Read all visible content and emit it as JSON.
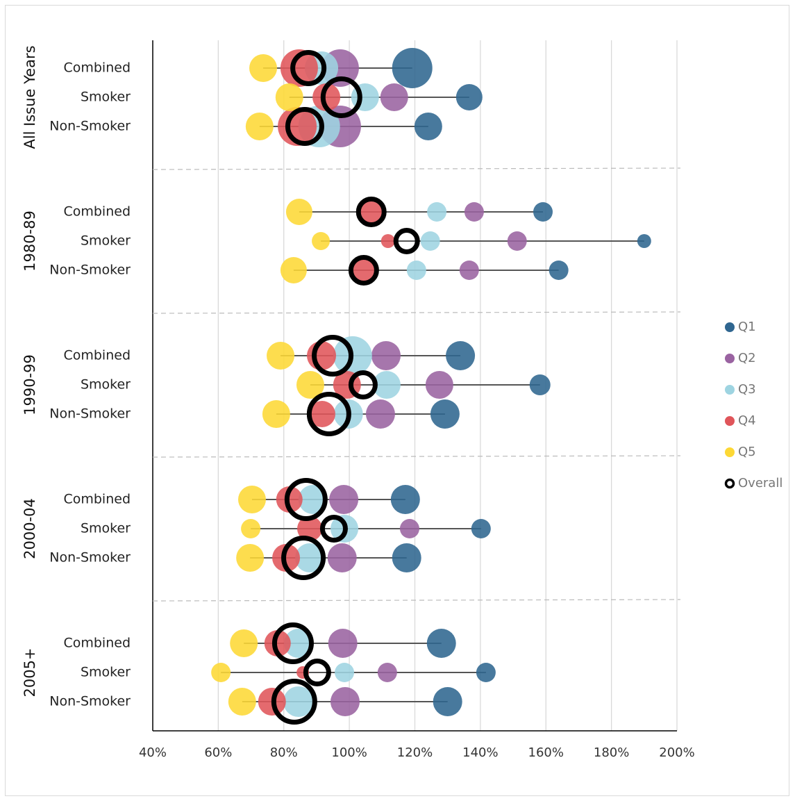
{
  "chart_data": {
    "type": "dot-bubble",
    "groups": [
      {
        "name": "All Issue Years",
        "rows": [
          "Combined",
          "Smoker",
          "Non-Smoker"
        ]
      },
      {
        "name": "1980-89",
        "rows": [
          "Combined",
          "Smoker",
          "Non-Smoker"
        ]
      },
      {
        "name": "1990-99",
        "rows": [
          "Combined",
          "Smoker",
          "Non-Smoker"
        ]
      },
      {
        "name": "2000-04",
        "rows": [
          "Combined",
          "Smoker",
          "Non-Smoker"
        ]
      },
      {
        "name": "2005+",
        "rows": [
          "Combined",
          "Smoker",
          "Non-Smoker"
        ]
      }
    ],
    "series": [
      {
        "name": "Q1",
        "color": "#2f6690",
        "values": [
          119.2,
          136.6,
          124.1,
          159.1,
          190.0,
          163.9,
          133.9,
          158.2,
          129.2,
          117.1,
          140.2,
          117.5,
          128.1,
          141.7,
          130.0
        ],
        "sizes": [
          29,
          19,
          20,
          14,
          10,
          14,
          21,
          15,
          21,
          21,
          14,
          21,
          21,
          14,
          21
        ]
      },
      {
        "name": "Q2",
        "color": "#9a63a1",
        "values": [
          97.2,
          113.7,
          97.2,
          138.1,
          151.2,
          136.6,
          111.2,
          127.5,
          109.5,
          98.3,
          118.4,
          97.8,
          98.0,
          111.6,
          98.7
        ],
        "sizes": [
          27,
          20,
          30,
          14,
          14,
          14,
          21,
          20,
          21,
          21,
          14,
          21,
          21,
          14,
          21
        ]
      },
      {
        "name": "Q3",
        "color": "#9ed4e1",
        "values": [
          91.5,
          104.8,
          90.8,
          126.7,
          124.7,
          120.5,
          101.0,
          111.4,
          99.7,
          88.9,
          98.5,
          87.9,
          84.5,
          98.5,
          84.5
        ],
        "sizes": [
          24,
          20,
          30,
          14,
          14,
          14,
          28,
          20,
          21,
          21,
          20,
          21,
          21,
          14,
          22
        ]
      },
      {
        "name": "Q4",
        "color": "#e0555a",
        "values": [
          84.7,
          93.0,
          84.1,
          106.7,
          111.8,
          104.4,
          91.5,
          99.3,
          91.7,
          81.7,
          87.9,
          80.7,
          78.1,
          85.8,
          76.4
        ],
        "sizes": [
          27,
          20,
          28,
          16,
          10,
          17,
          21,
          20,
          19,
          19,
          18,
          20,
          19,
          9,
          20
        ]
      },
      {
        "name": "Q5",
        "color": "#fdd835",
        "values": [
          73.7,
          81.7,
          72.6,
          84.7,
          91.3,
          83.0,
          79.0,
          88.1,
          77.7,
          70.3,
          69.9,
          69.7,
          67.8,
          60.8,
          67.3
        ],
        "sizes": [
          20,
          20,
          20,
          19,
          13,
          19,
          20,
          20,
          20,
          20,
          14,
          20,
          20,
          14,
          20
        ]
      },
      {
        "name": "Overall",
        "color": "#000000",
        "values": [
          87.5,
          97.6,
          86.4,
          106.7,
          117.5,
          104.4,
          94.9,
          104.2,
          93.8,
          86.8,
          95.3,
          86.0,
          82.8,
          90.2,
          83.2
        ],
        "sizes": [
          26,
          30,
          28,
          22,
          19,
          22,
          30,
          21,
          32,
          31,
          20,
          32,
          30,
          20,
          33
        ]
      }
    ],
    "xlim": [
      40,
      200
    ],
    "xticks": [
      {
        "value": 40,
        "label": "40%"
      },
      {
        "value": 60,
        "label": "60%"
      },
      {
        "value": 80,
        "label": "80%"
      },
      {
        "value": 100,
        "label": "100%"
      },
      {
        "value": 120,
        "label": "120%"
      },
      {
        "value": 140,
        "label": "140%"
      },
      {
        "value": 160,
        "label": "160%"
      },
      {
        "value": 180,
        "label": "180%"
      },
      {
        "value": 200,
        "label": "200%"
      }
    ],
    "grid": true,
    "legend": "right"
  }
}
